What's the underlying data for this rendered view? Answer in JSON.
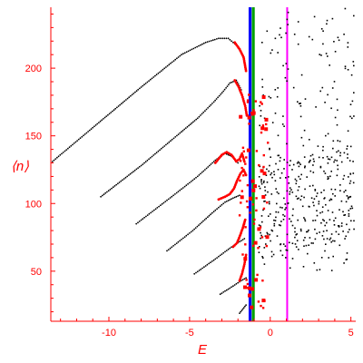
{
  "chart_data": {
    "type": "scatter",
    "title": "",
    "xlabel": "E",
    "ylabel": "⟨n⟩",
    "xlim": [
      -13.6,
      5.3
    ],
    "ylim": [
      13,
      245
    ],
    "x_ticks": [
      -10,
      -5,
      0,
      5
    ],
    "x_tick_labels": [
      "-10",
      "-5",
      "0",
      "5"
    ],
    "y_ticks": [
      50,
      100,
      150,
      200
    ],
    "y_tick_labels": [
      "50",
      "100",
      "150",
      "200"
    ],
    "grid": false,
    "legend": "none",
    "colors": {
      "axis": "#ff0000",
      "chains": "#000000",
      "red_points": "#ff0000",
      "blue_line": "#0000ff",
      "green_line": "#00a000",
      "magenta_line": "#ff00ff"
    },
    "vertical_lines": [
      {
        "x": -1.25,
        "color": "#0000ff"
      },
      {
        "x": -1.05,
        "color": "#00a000"
      },
      {
        "x": 1.05,
        "color": "#ff00ff"
      }
    ],
    "chains": [
      {
        "points": [
          [
            -13.5,
            131
          ],
          [
            -11,
            156
          ],
          [
            -8,
            186
          ],
          [
            -5.5,
            210
          ],
          [
            -4,
            219
          ],
          [
            -3.2,
            222
          ],
          [
            -2.6,
            222
          ],
          [
            -2.2,
            218
          ]
        ]
      },
      {
        "points": [
          [
            -10.5,
            105
          ],
          [
            -8,
            128
          ],
          [
            -5.5,
            153
          ],
          [
            -4.5,
            163
          ],
          [
            -3.5,
            175
          ],
          [
            -2.9,
            183
          ],
          [
            -2.5,
            189
          ],
          [
            -2.1,
            191
          ],
          [
            -1.8,
            184
          ]
        ]
      },
      {
        "points": [
          [
            -8.3,
            85
          ],
          [
            -6,
            106
          ],
          [
            -4.5,
            120
          ],
          [
            -3.4,
            132
          ],
          [
            -2.8,
            137
          ],
          [
            -2.4,
            135
          ],
          [
            -2,
            130
          ]
        ]
      },
      {
        "points": [
          [
            -6.4,
            65
          ],
          [
            -4.8,
            80
          ],
          [
            -3.6,
            93
          ],
          [
            -2.8,
            101
          ],
          [
            -2.3,
            104
          ],
          [
            -1.9,
            106
          ]
        ]
      },
      {
        "points": [
          [
            -4.7,
            48
          ],
          [
            -3.4,
            59
          ],
          [
            -2.5,
            67
          ],
          [
            -2,
            71
          ],
          [
            -1.6,
            74
          ]
        ]
      },
      {
        "points": [
          [
            -3.1,
            33
          ],
          [
            -2.3,
            39
          ],
          [
            -1.8,
            43
          ],
          [
            -1.5,
            45
          ]
        ]
      },
      {
        "points": [
          [
            -1.9,
            19
          ],
          [
            -1.7,
            22
          ],
          [
            -1.5,
            25
          ]
        ]
      }
    ],
    "red_segments": [
      {
        "points": [
          [
            -2.2,
            219
          ],
          [
            -1.9,
            214
          ],
          [
            -1.65,
            208
          ],
          [
            -1.5,
            198
          ]
        ]
      },
      {
        "points": [
          [
            -2.2,
            191
          ],
          [
            -1.95,
            186
          ],
          [
            -1.75,
            180
          ],
          [
            -1.55,
            172
          ],
          [
            -1.45,
            165
          ]
        ]
      },
      {
        "points": [
          [
            -3.4,
            130
          ],
          [
            -3.0,
            136
          ],
          [
            -2.7,
            138
          ],
          [
            -2.4,
            136
          ],
          [
            -2.1,
            131
          ],
          [
            -1.9,
            133
          ],
          [
            -1.75,
            137
          ],
          [
            -1.6,
            131
          ]
        ]
      },
      {
        "points": [
          [
            -3.2,
            103
          ],
          [
            -2.8,
            105
          ],
          [
            -2.5,
            107
          ],
          [
            -2.25,
            111
          ],
          [
            -2.05,
            117
          ],
          [
            -1.85,
            122
          ],
          [
            -1.65,
            125
          ],
          [
            -1.5,
            121
          ]
        ]
      },
      {
        "points": [
          [
            -2.3,
            68
          ],
          [
            -2.05,
            71
          ],
          [
            -1.85,
            77
          ],
          [
            -1.7,
            82
          ],
          [
            -1.55,
            88
          ]
        ]
      },
      {
        "points": [
          [
            -1.9,
            43
          ],
          [
            -1.75,
            48
          ],
          [
            -1.6,
            55
          ],
          [
            -1.5,
            62
          ]
        ]
      }
    ],
    "red_scatter": {
      "count": 90,
      "x_range": [
        -1.9,
        -0.1
      ],
      "y_range": [
        20,
        185
      ]
    },
    "black_scatter": {
      "count": 460,
      "x_range": [
        -0.7,
        5.2
      ],
      "y_range": [
        48,
        245
      ]
    }
  }
}
